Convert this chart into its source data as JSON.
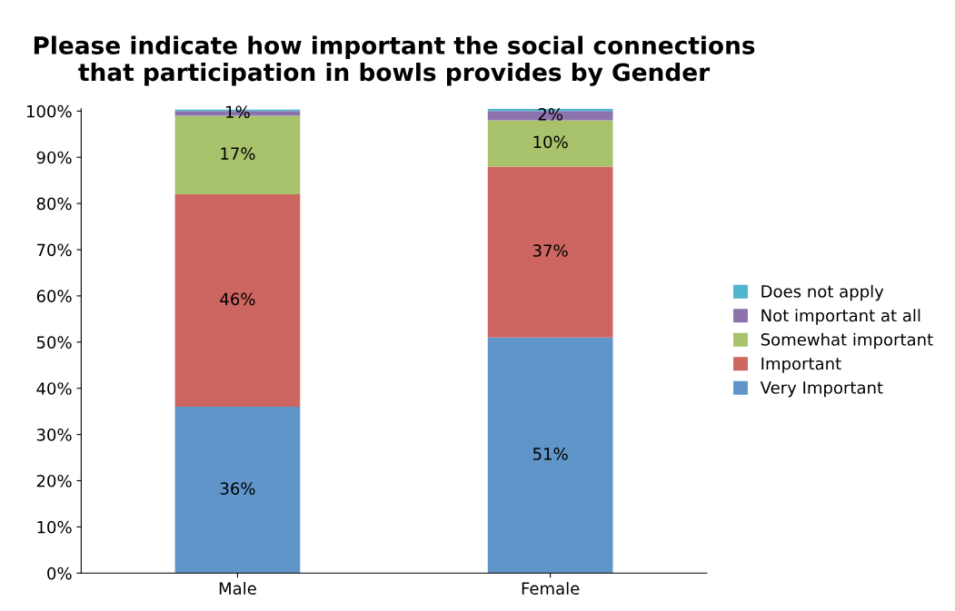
{
  "chart_data": {
    "type": "bar",
    "stacked": true,
    "title": "Please indicate how important the social connections that participation in bowls provides by Gender",
    "categories": [
      "Male",
      "Female"
    ],
    "series": [
      {
        "name": "Very Important",
        "color": "#5f95c8",
        "values": [
          36,
          51
        ],
        "value_labels": [
          "36%",
          "51%"
        ]
      },
      {
        "name": "Important",
        "color": "#cd6660",
        "values": [
          46,
          37
        ],
        "value_labels": [
          "46%",
          "37%"
        ]
      },
      {
        "name": "Somewhat important",
        "color": "#a9c26c",
        "values": [
          17,
          10
        ],
        "value_labels": [
          "17%",
          "10%"
        ]
      },
      {
        "name": "Not important at all",
        "color": "#8d73ae",
        "values": [
          1,
          2
        ],
        "value_labels": [
          "1%",
          "2%"
        ]
      },
      {
        "name": "Does not apply",
        "color": "#4fb5cc",
        "values": [
          0.3,
          0.5
        ],
        "value_labels": [
          null,
          null
        ]
      }
    ],
    "ylim": [
      0,
      100.5
    ],
    "yticks": [
      {
        "value": 0,
        "label": "0%"
      },
      {
        "value": 10,
        "label": "10%"
      },
      {
        "value": 20,
        "label": "20%"
      },
      {
        "value": 30,
        "label": "30%"
      },
      {
        "value": 40,
        "label": "40%"
      },
      {
        "value": 50,
        "label": "50%"
      },
      {
        "value": 60,
        "label": "60%"
      },
      {
        "value": 70,
        "label": "70%"
      },
      {
        "value": 80,
        "label": "80%"
      },
      {
        "value": 90,
        "label": "90%"
      },
      {
        "value": 100,
        "label": "100%"
      }
    ],
    "grid": false,
    "legend": "right"
  }
}
